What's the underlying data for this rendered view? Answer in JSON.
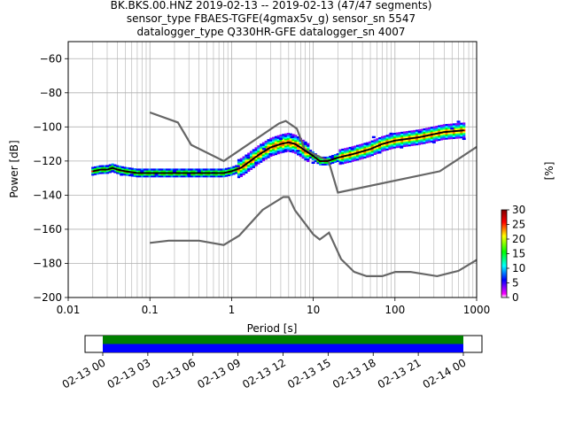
{
  "title": {
    "line1": "BK.BKS.00.HNZ   2019-02-13 -- 2019-02-13  (47/47 segments)",
    "line2": "sensor_type FBAES-TGFE(4gmax5v_g) sensor_sn 5547",
    "line3": "datalogger_type Q330HR-GFE datalogger_sn 4007"
  },
  "colors": {
    "noise_model": "#666666",
    "mode_curve": "#000000",
    "grid": "#b0b0b0",
    "timeline_series_1": "#008000",
    "timeline_series_2": "#0000ff"
  },
  "chart_data": [
    {
      "type": "heatmap",
      "xlabel": "Period [s]",
      "ylabel": "Power [dB]",
      "xscale": "log",
      "xlim": [
        0.01,
        1000
      ],
      "ylim": [
        -200,
        -50
      ],
      "grid": true,
      "x_ticks": [
        {
          "value": 0.01,
          "label": "0.01"
        },
        {
          "value": 0.1,
          "label": "0.1"
        },
        {
          "value": 1,
          "label": "1"
        },
        {
          "value": 10,
          "label": "10"
        },
        {
          "value": 100,
          "label": "100"
        },
        {
          "value": 1000,
          "label": "1000"
        }
      ],
      "y_ticks": [
        {
          "value": -60,
          "label": "−60"
        },
        {
          "value": -80,
          "label": "−80"
        },
        {
          "value": -100,
          "label": "−100"
        },
        {
          "value": -120,
          "label": "−120"
        },
        {
          "value": -140,
          "label": "−140"
        },
        {
          "value": -160,
          "label": "−160"
        },
        {
          "value": -180,
          "label": "−180"
        },
        {
          "value": -200,
          "label": "−200"
        }
      ],
      "colorbar": {
        "label": "[%]",
        "range": [
          0,
          30
        ],
        "ticks": [
          {
            "value": 0,
            "label": "0"
          },
          {
            "value": 5,
            "label": "5"
          },
          {
            "value": 10,
            "label": "10"
          },
          {
            "value": 15,
            "label": "15"
          },
          {
            "value": 20,
            "label": "20"
          },
          {
            "value": 25,
            "label": "25"
          },
          {
            "value": 30,
            "label": "30"
          }
        ]
      },
      "psd_mode": [
        [
          0.02,
          -126
        ],
        [
          0.025,
          -125
        ],
        [
          0.03,
          -125
        ],
        [
          0.035,
          -124
        ],
        [
          0.04,
          -125
        ],
        [
          0.05,
          -126
        ],
        [
          0.07,
          -127
        ],
        [
          0.1,
          -127
        ],
        [
          0.15,
          -127
        ],
        [
          0.2,
          -127
        ],
        [
          0.3,
          -127
        ],
        [
          0.5,
          -127
        ],
        [
          0.8,
          -127
        ],
        [
          1.0,
          -126
        ],
        [
          1.3,
          -124
        ],
        [
          1.7,
          -120
        ],
        [
          2.2,
          -116
        ],
        [
          3.0,
          -112
        ],
        [
          4.0,
          -110
        ],
        [
          5.0,
          -109
        ],
        [
          6.0,
          -110
        ],
        [
          7.0,
          -112
        ],
        [
          8.0,
          -114
        ],
        [
          10,
          -117
        ],
        [
          12,
          -120
        ],
        [
          15,
          -120
        ],
        [
          20,
          -118
        ],
        [
          30,
          -116
        ],
        [
          50,
          -113
        ],
        [
          70,
          -110
        ],
        [
          100,
          -108
        ],
        [
          200,
          -106
        ],
        [
          400,
          -103
        ],
        [
          700,
          -102
        ]
      ],
      "psd_spread": [
        {
          "x": 0.03,
          "y": -123
        },
        {
          "x": 0.035,
          "y": -126
        },
        {
          "x": 0.045,
          "y": -128
        },
        {
          "x": 0.06,
          "y": -128
        },
        {
          "x": 0.08,
          "y": -126
        },
        {
          "x": 0.12,
          "y": -128
        },
        {
          "x": 0.2,
          "y": -126
        },
        {
          "x": 0.3,
          "y": -128
        },
        {
          "x": 0.4,
          "y": -126
        },
        {
          "x": 0.6,
          "y": -127
        },
        {
          "x": 1.2,
          "y": -123
        },
        {
          "x": 1.6,
          "y": -118
        },
        {
          "x": 2.0,
          "y": -121
        },
        {
          "x": 2.5,
          "y": -113
        },
        {
          "x": 3.0,
          "y": -116
        },
        {
          "x": 4.0,
          "y": -107
        },
        {
          "x": 4.5,
          "y": -114
        },
        {
          "x": 5.5,
          "y": -106
        },
        {
          "x": 6.5,
          "y": -114
        },
        {
          "x": 8.0,
          "y": -110
        },
        {
          "x": 10,
          "y": -121
        },
        {
          "x": 17,
          "y": -118
        },
        {
          "x": 22,
          "y": -121
        },
        {
          "x": 30,
          "y": -113
        },
        {
          "x": 45,
          "y": -110
        },
        {
          "x": 55,
          "y": -106
        },
        {
          "x": 65,
          "y": -115
        },
        {
          "x": 90,
          "y": -104
        },
        {
          "x": 120,
          "y": -112
        },
        {
          "x": 200,
          "y": -103
        },
        {
          "x": 300,
          "y": -109
        },
        {
          "x": 500,
          "y": -101
        },
        {
          "x": 600,
          "y": -97
        },
        {
          "x": 700,
          "y": -107
        }
      ],
      "noise_models": [
        {
          "points": [
            [
              0.1,
              -91.5
            ],
            [
              0.22,
              -97.4
            ],
            [
              0.32,
              -110.5
            ],
            [
              0.8,
              -120
            ],
            [
              3.8,
              -98
            ],
            [
              4.6,
              -96.5
            ],
            [
              6.3,
              -101
            ],
            [
              7.9,
              -113.5
            ],
            [
              15.4,
              -120
            ],
            [
              20,
              -138.5
            ],
            [
              354.8,
              -126
            ],
            [
              10000,
              -80
            ]
          ]
        },
        {
          "points": [
            [
              0.1,
              -168
            ],
            [
              0.17,
              -166.7
            ],
            [
              0.4,
              -166.7
            ],
            [
              0.8,
              -169.2
            ],
            [
              1.24,
              -163.7
            ],
            [
              2.4,
              -148.6
            ],
            [
              4.3,
              -141.1
            ],
            [
              5.0,
              -141.1
            ],
            [
              6.0,
              -149
            ],
            [
              10,
              -163
            ],
            [
              12,
              -166
            ],
            [
              15.6,
              -162
            ],
            [
              21.9,
              -177.5
            ],
            [
              31.6,
              -185
            ],
            [
              45,
              -187.5
            ],
            [
              70,
              -187.5
            ],
            [
              101,
              -185
            ],
            [
              154,
              -185
            ],
            [
              328,
              -187.5
            ],
            [
              600,
              -184.4
            ],
            [
              1000,
              -178
            ]
          ]
        }
      ]
    },
    {
      "type": "timeline",
      "start_label": "02-13 00",
      "end_label": "02-14 00",
      "ticks": [
        "02-13 00",
        "02-13 03",
        "02-13 06",
        "02-13 09",
        "02-13 12",
        "02-13 15",
        "02-13 18",
        "02-13 21",
        "02-14 00"
      ],
      "series": [
        {
          "color": "#008000",
          "start_hour": 0,
          "end_hour": 24
        },
        {
          "color": "#0000ff",
          "start_hour": 0,
          "end_hour": 24
        }
      ]
    }
  ]
}
